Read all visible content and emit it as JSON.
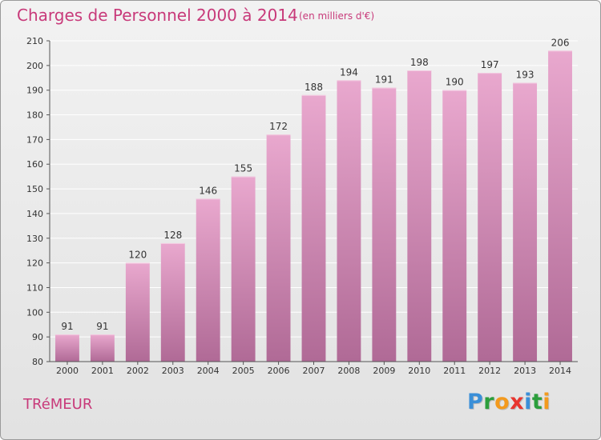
{
  "header": {
    "title": "Charges de Personnel 2000 à 2014",
    "subtitle": "(en milliers d'€)"
  },
  "footer": {
    "commune": "TRéMEUR",
    "logo": "Proxiti"
  },
  "colors": {
    "title": "#c83a7a",
    "bar_top": "#e9a8ce",
    "bar_bottom": "#b06a96",
    "axis": "#555555",
    "grid": "#ffffff"
  },
  "chart_data": {
    "type": "bar",
    "title": "Charges de Personnel 2000 à 2014",
    "subtitle": "(en milliers d'€)",
    "xlabel": "",
    "ylabel": "",
    "categories": [
      "2000",
      "2001",
      "2002",
      "2003",
      "2004",
      "2005",
      "2006",
      "2007",
      "2008",
      "2009",
      "2010",
      "2011",
      "2012",
      "2013",
      "2014"
    ],
    "values": [
      91,
      91,
      120,
      128,
      146,
      155,
      172,
      188,
      194,
      191,
      198,
      190,
      197,
      193,
      206
    ],
    "ylim": [
      80,
      210
    ],
    "yticks": [
      80,
      90,
      100,
      110,
      120,
      130,
      140,
      150,
      160,
      170,
      180,
      190,
      200,
      210
    ],
    "grid": true,
    "legend": "none"
  }
}
